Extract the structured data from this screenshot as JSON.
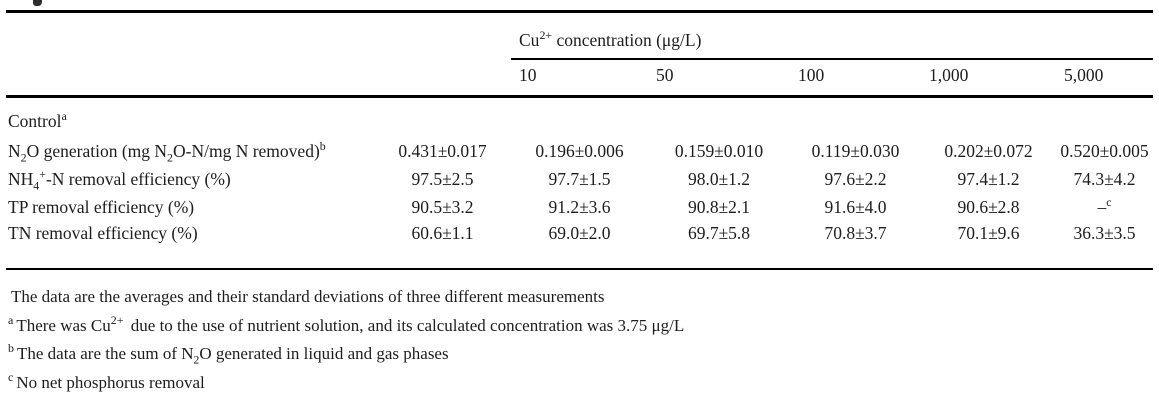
{
  "table": {
    "group_header": [
      {
        "t": "Cu"
      },
      {
        "t": "2+",
        "m": "sup"
      },
      {
        "t": " concentration (μg/L)"
      }
    ],
    "col_headers": [
      "10",
      "50",
      "100",
      "1,000",
      "5,000"
    ],
    "section_label": [
      {
        "t": "Control"
      },
      {
        "t": "a",
        "m": "sup"
      }
    ],
    "rows": [
      {
        "label": [
          {
            "t": "N"
          },
          {
            "t": "2",
            "m": "sub"
          },
          {
            "t": "O generation (mg N"
          },
          {
            "t": "2",
            "m": "sub"
          },
          {
            "t": "O-N/mg N removed)"
          },
          {
            "t": "b",
            "m": "sup"
          }
        ],
        "values": [
          "0.431±0.017",
          "0.196±0.006",
          "0.159±0.010",
          "0.119±0.030",
          "0.202±0.072",
          "0.520±0.005"
        ]
      },
      {
        "label": [
          {
            "t": "NH"
          },
          {
            "t": "4",
            "m": "sub"
          },
          {
            "t": "+",
            "m": "sup"
          },
          {
            "t": "-N removal efficiency (%)"
          }
        ],
        "values": [
          "97.5±2.5",
          "97.7±1.5",
          "98.0±1.2",
          "97.6±2.2",
          "97.4±1.2",
          "74.3±4.2"
        ]
      },
      {
        "label": [
          {
            "t": "TP removal efficiency (%)"
          }
        ],
        "values": [
          "90.5±3.2",
          "91.2±3.6",
          "90.8±2.1",
          "91.6±4.0",
          "90.6±2.8",
          [
            {
              "t": "–"
            },
            {
              "t": "c",
              "m": "sup"
            }
          ]
        ]
      },
      {
        "label": [
          {
            "t": "TN removal efficiency (%)"
          }
        ],
        "values": [
          "60.6±1.1",
          "69.0±2.0",
          "69.7±5.8",
          "70.8±3.7",
          "70.1±9.6",
          "36.3±3.5"
        ]
      }
    ],
    "footnotes": [
      {
        "marker": "",
        "text": [
          {
            "t": "The data are the averages and their standard deviations of three different measurements"
          }
        ]
      },
      {
        "marker": "a",
        "text": [
          {
            "t": "There was Cu"
          },
          {
            "t": "2+",
            "m": "sup"
          },
          {
            "t": " due to the use of nutrient solution, and its calculated concentration was 3.75 μg/L"
          }
        ]
      },
      {
        "marker": "b",
        "text": [
          {
            "t": "The data are the sum of N"
          },
          {
            "t": "2",
            "m": "sub"
          },
          {
            "t": "O generated in liquid and gas phases"
          }
        ]
      },
      {
        "marker": "c",
        "text": [
          {
            "t": "No net phosphorus removal"
          }
        ]
      }
    ],
    "colors": {
      "text": "#1d1d1b",
      "rule": "#000000",
      "background": "#ffffff"
    }
  }
}
